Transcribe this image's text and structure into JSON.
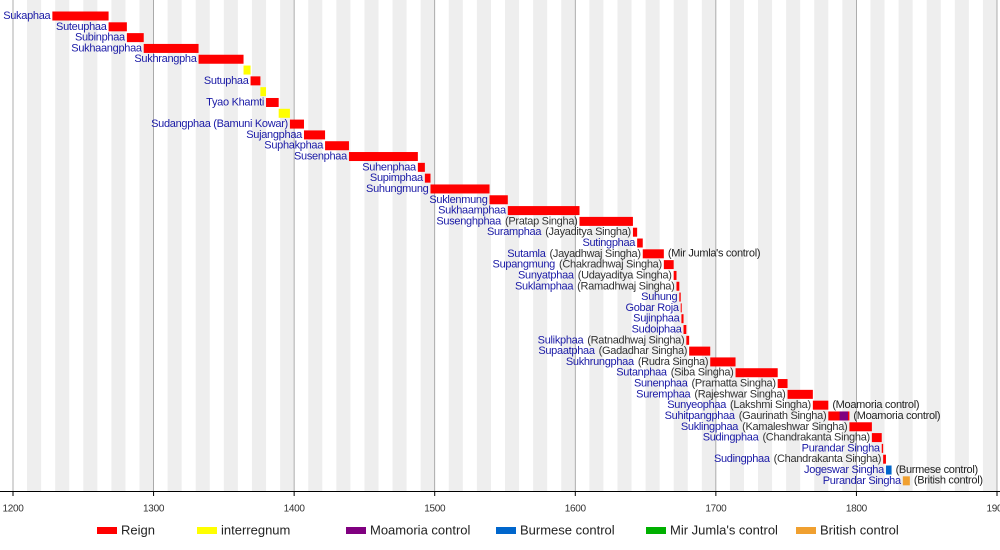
{
  "chart_data": {
    "type": "timeline",
    "xlim": [
      1200,
      1900
    ],
    "xticks": [
      1200,
      1300,
      1400,
      1500,
      1600,
      1700,
      1800,
      1900
    ],
    "series": [
      {
        "name": "Reign",
        "color": "#ff0000"
      },
      {
        "name": "interregnum",
        "color": "#ffff00"
      },
      {
        "name": "Moamoria control",
        "color": "#800080"
      },
      {
        "name": "Burmese control",
        "color": "#0066cc"
      },
      {
        "name": "Mir Jumla's control",
        "color": "#00b000"
      },
      {
        "name": "British control",
        "color": "#f0a030"
      }
    ],
    "rows": [
      {
        "label": "Sukaphaa",
        "segments": [
          {
            "start": 1228,
            "end": 1268,
            "series": 0
          }
        ]
      },
      {
        "label": "Suteuphaa",
        "segments": [
          {
            "start": 1268,
            "end": 1281,
            "series": 0
          }
        ]
      },
      {
        "label": "Subinphaa",
        "segments": [
          {
            "start": 1281,
            "end": 1293,
            "series": 0
          }
        ]
      },
      {
        "label": "Sukhaangphaa",
        "segments": [
          {
            "start": 1293,
            "end": 1332,
            "series": 0
          }
        ]
      },
      {
        "label": "Sukhrangpha",
        "segments": [
          {
            "start": 1332,
            "end": 1364,
            "series": 0
          }
        ]
      },
      {
        "segments": [
          {
            "start": 1364,
            "end": 1369,
            "series": 1
          }
        ]
      },
      {
        "label": "Sutuphaa",
        "segments": [
          {
            "start": 1369,
            "end": 1376,
            "series": 0
          }
        ]
      },
      {
        "segments": [
          {
            "start": 1376,
            "end": 1380,
            "series": 1
          }
        ]
      },
      {
        "label": "Tyao Khamti",
        "segments": [
          {
            "start": 1380,
            "end": 1389,
            "series": 0
          }
        ]
      },
      {
        "segments": [
          {
            "start": 1389,
            "end": 1397,
            "series": 1
          }
        ]
      },
      {
        "label": "Sudangphaa (Bamuni Kowar)",
        "segments": [
          {
            "start": 1397,
            "end": 1407,
            "series": 0
          }
        ]
      },
      {
        "label": "Sujangphaa",
        "segments": [
          {
            "start": 1407,
            "end": 1422,
            "series": 0
          }
        ]
      },
      {
        "label": "Suphakphaa",
        "segments": [
          {
            "start": 1422,
            "end": 1439,
            "series": 0
          }
        ]
      },
      {
        "label": "Susenphaa",
        "segments": [
          {
            "start": 1439,
            "end": 1488,
            "series": 0
          }
        ]
      },
      {
        "label": "Suhenphaa",
        "segments": [
          {
            "start": 1488,
            "end": 1493,
            "series": 0
          }
        ]
      },
      {
        "label": "Supimphaa",
        "segments": [
          {
            "start": 1493,
            "end": 1497,
            "series": 0
          }
        ]
      },
      {
        "label": "Suhungmung",
        "segments": [
          {
            "start": 1497,
            "end": 1539,
            "series": 0
          }
        ]
      },
      {
        "label": "Suklenmung",
        "segments": [
          {
            "start": 1539,
            "end": 1552,
            "series": 0
          }
        ]
      },
      {
        "label": "Sukhaamphaa",
        "segments": [
          {
            "start": 1552,
            "end": 1603,
            "series": 0
          }
        ]
      },
      {
        "label": "Susenghphaa",
        "sublabel": "(Pratap Singha)",
        "segments": [
          {
            "start": 1603,
            "end": 1641,
            "series": 0
          }
        ]
      },
      {
        "label": "Suramphaa",
        "sublabel": "(Jayaditya Singha)",
        "segments": [
          {
            "start": 1641,
            "end": 1644,
            "series": 0
          }
        ]
      },
      {
        "label": "Sutingphaa",
        "segments": [
          {
            "start": 1644,
            "end": 1648,
            "series": 0
          }
        ]
      },
      {
        "label": "Sutamla",
        "sublabel": "(Jayadhwaj Singha)",
        "note": "(Mir Jumla's control)",
        "segments": [
          {
            "start": 1648,
            "end": 1663,
            "series": 0
          }
        ]
      },
      {
        "label": "Supangmung",
        "sublabel": "(Chakradhwaj Singha)",
        "segments": [
          {
            "start": 1663,
            "end": 1670,
            "series": 0
          }
        ]
      },
      {
        "label": "Sunyatphaa",
        "sublabel": "(Udayaditya Singha)",
        "segments": [
          {
            "start": 1670,
            "end": 1672,
            "series": 0
          }
        ]
      },
      {
        "label": "Suklamphaa",
        "sublabel": "(Ramadhwaj Singha)",
        "segments": [
          {
            "start": 1672,
            "end": 1674,
            "series": 0
          }
        ]
      },
      {
        "label": "Suhung",
        "segments": [
          {
            "start": 1674,
            "end": 1675,
            "series": 0
          }
        ]
      },
      {
        "label": "Gobar Roja",
        "segments": [
          {
            "start": 1675,
            "end": 1675.5,
            "series": 0
          }
        ]
      },
      {
        "label": "Sujinphaa",
        "segments": [
          {
            "start": 1675.5,
            "end": 1677,
            "series": 0
          }
        ]
      },
      {
        "label": "Sudoiphaa",
        "segments": [
          {
            "start": 1677,
            "end": 1679,
            "series": 0
          }
        ]
      },
      {
        "label": "Sulikphaa",
        "sublabel": "(Ratnadhwaj Singha)",
        "segments": [
          {
            "start": 1679,
            "end": 1681,
            "series": 0
          }
        ]
      },
      {
        "label": "Supaatphaa",
        "sublabel": "(Gadadhar Singha)",
        "segments": [
          {
            "start": 1681,
            "end": 1696,
            "series": 0
          }
        ]
      },
      {
        "label": "Sukhrungphaa",
        "sublabel": "(Rudra Singha)",
        "segments": [
          {
            "start": 1696,
            "end": 1714,
            "series": 0
          }
        ]
      },
      {
        "label": "Sutanphaa",
        "sublabel": "(Siba Singha)",
        "segments": [
          {
            "start": 1714,
            "end": 1744,
            "series": 0
          }
        ]
      },
      {
        "label": "Sunenphaa",
        "sublabel": "(Pramatta Singha)",
        "segments": [
          {
            "start": 1744,
            "end": 1751,
            "series": 0
          }
        ]
      },
      {
        "label": "Suremphaa",
        "sublabel": "(Rajeshwar Singha)",
        "segments": [
          {
            "start": 1751,
            "end": 1769,
            "series": 0
          }
        ]
      },
      {
        "label": "Sunyeophaa",
        "sublabel": "(Lakshmi Singha)",
        "note": "(Moamoria control)",
        "segments": [
          {
            "start": 1769,
            "end": 1780,
            "series": 0
          }
        ]
      },
      {
        "label": "Suhitpangphaa",
        "sublabel": "(Gaurinath Singha)",
        "note": "(Moamoria control)",
        "segments": [
          {
            "start": 1780,
            "end": 1795,
            "series": 0
          },
          {
            "start": 1788,
            "end": 1794,
            "series": 2
          }
        ]
      },
      {
        "label": "Suklingphaa",
        "sublabel": "(Kamaleshwar Singha)",
        "segments": [
          {
            "start": 1795,
            "end": 1811,
            "series": 0
          }
        ]
      },
      {
        "label": "Sudingphaa",
        "sublabel": "(Chandrakanta Singha)",
        "segments": [
          {
            "start": 1811,
            "end": 1818,
            "series": 0
          }
        ]
      },
      {
        "label": "Purandar Singha",
        "segments": [
          {
            "start": 1818,
            "end": 1819,
            "series": 0
          }
        ]
      },
      {
        "label": "Sudingphaa",
        "sublabel": "(Chandrakanta Singha)",
        "segments": [
          {
            "start": 1819,
            "end": 1821,
            "series": 0
          }
        ]
      },
      {
        "label": "Jogeswar Singha",
        "note": "(Burmese control)",
        "segments": [
          {
            "start": 1821,
            "end": 1825,
            "series": 3
          }
        ]
      },
      {
        "label": "Purandar Singha",
        "note": "(British control)",
        "segments": [
          {
            "start": 1833,
            "end": 1838,
            "series": 5
          }
        ]
      }
    ]
  }
}
